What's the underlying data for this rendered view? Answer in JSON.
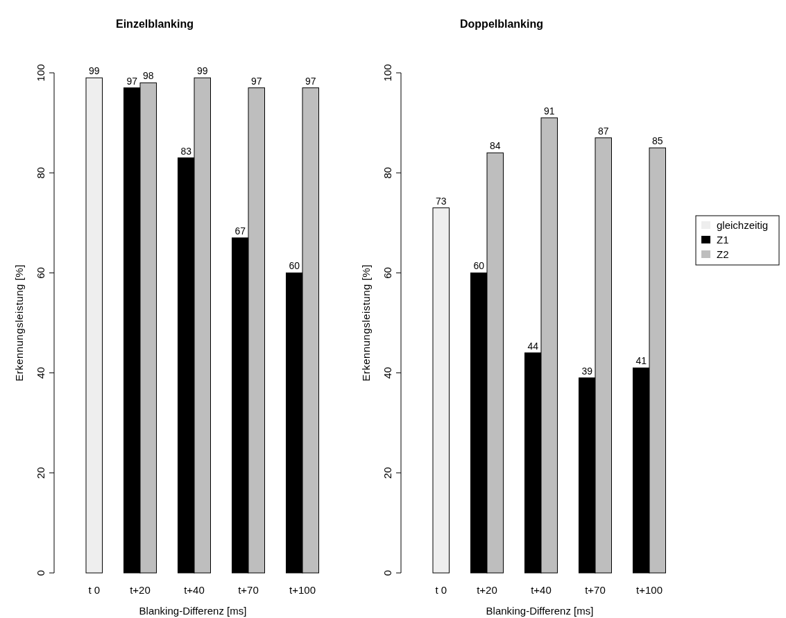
{
  "chart_data": [
    {
      "type": "bar",
      "title": "Einzelblanking",
      "xlabel": "Blanking-Differenz [ms]",
      "ylabel": "Erkennungsleistung [%]",
      "categories": [
        "t 0",
        "t+20",
        "t+40",
        "t+70",
        "t+100"
      ],
      "series": [
        {
          "color": "#eeeeee",
          "values": [
            99,
            null,
            null,
            null,
            null
          ]
        },
        {
          "color": "#000000",
          "values": [
            null,
            97,
            83,
            67,
            60
          ]
        },
        {
          "color": "#bebebe",
          "values": [
            null,
            98,
            99,
            97,
            97
          ]
        }
      ],
      "ylim": [
        0,
        100
      ],
      "yticks": [
        0,
        20,
        40,
        60,
        80,
        100
      ],
      "data_labels": true,
      "legend": false,
      "grid": false
    },
    {
      "type": "bar",
      "title": "Doppelblanking",
      "xlabel": "Blanking-Differenz [ms]",
      "ylabel": "Erkennungsleistung [%]",
      "categories": [
        "t 0",
        "t+20",
        "t+40",
        "t+70",
        "t+100"
      ],
      "series": [
        {
          "name": "gleichzeitig",
          "color": "#eeeeee",
          "values": [
            73,
            null,
            null,
            null,
            null
          ]
        },
        {
          "name": "Z1",
          "color": "#000000",
          "values": [
            null,
            60,
            44,
            39,
            41
          ]
        },
        {
          "name": "Z2",
          "color": "#bebebe",
          "values": [
            null,
            84,
            91,
            87,
            85
          ]
        }
      ],
      "ylim": [
        0,
        100
      ],
      "yticks": [
        0,
        20,
        40,
        60,
        80,
        100
      ],
      "data_labels": true,
      "legend": "right",
      "grid": false
    }
  ]
}
